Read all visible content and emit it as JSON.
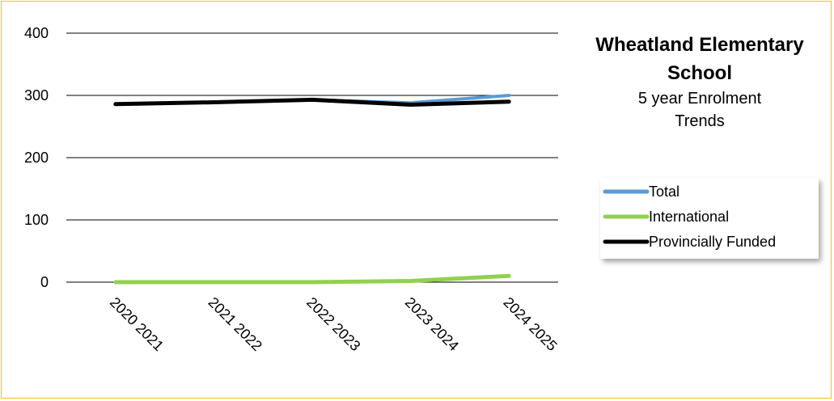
{
  "chart_data": {
    "type": "line",
    "title_lines": [
      "Wheatland Elementary",
      "School"
    ],
    "subtitle_lines": [
      "5 year Enrolment",
      "Trends"
    ],
    "categories": [
      "2020 2021",
      "2021 2022",
      "2022 2023",
      "2023 2024",
      "2024 2025"
    ],
    "ylim": [
      0,
      400
    ],
    "yticks": [
      0,
      100,
      200,
      300,
      400
    ],
    "grid": true,
    "legend_position": "right",
    "series": [
      {
        "name": "Total",
        "color": "#5b9bd5",
        "values": [
          286,
          289,
          293,
          288,
          300
        ]
      },
      {
        "name": "International",
        "color": "#92d050",
        "values": [
          0,
          0,
          0,
          2,
          10
        ]
      },
      {
        "name": "Provincially Funded",
        "color": "#000000",
        "values": [
          286,
          289,
          293,
          285,
          290
        ]
      }
    ]
  }
}
